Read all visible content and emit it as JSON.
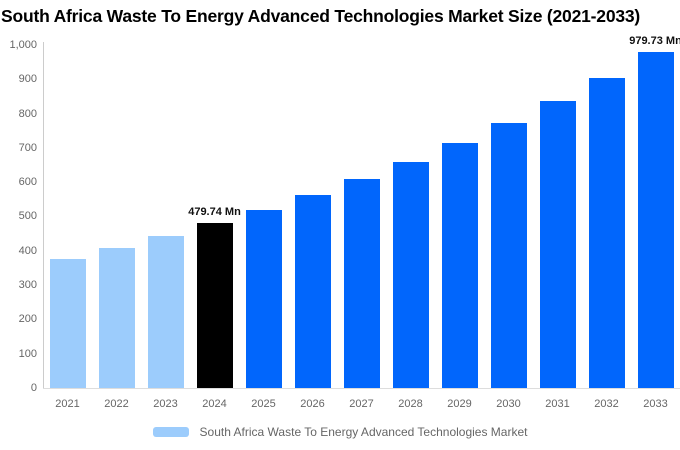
{
  "title": "South Africa Waste To Energy Advanced Technologies Market Size (2021-2033)",
  "chart_data": {
    "type": "bar",
    "title": "South Africa Waste To Energy Advanced Technologies Market Size (2021-2033)",
    "categories": [
      "2021",
      "2022",
      "2023",
      "2024",
      "2025",
      "2026",
      "2027",
      "2028",
      "2029",
      "2030",
      "2031",
      "2032",
      "2033"
    ],
    "values": [
      375,
      408,
      442,
      479.74,
      519,
      562,
      609,
      659,
      713,
      772,
      836,
      905,
      979.73
    ],
    "unit": "Mn",
    "series_name": "South Africa Waste To Energy Advanced Technologies Market",
    "ylim": [
      0,
      1000
    ],
    "ytick_step": 100,
    "ytick_labels": [
      "1,000",
      "900",
      "800",
      "700",
      "600",
      "500",
      "400",
      "300",
      "200",
      "100",
      "0"
    ],
    "grid": false,
    "legend_position": "bottom-center",
    "bar_roles": [
      "historical",
      "historical",
      "historical",
      "current",
      "forecast",
      "forecast",
      "forecast",
      "forecast",
      "forecast",
      "forecast",
      "forecast",
      "forecast",
      "forecast"
    ],
    "annotations": [
      {
        "category": "2024",
        "label": "479.74 Mn"
      },
      {
        "category": "2033",
        "label": "979.73 Mn"
      }
    ]
  },
  "colors": {
    "historical_bar": "#9cccfc",
    "current_bar": "#000000",
    "forecast_bar": "#0166fc",
    "axis_line": "#cccccc",
    "axis_text": "#666666",
    "title_text": "#000000",
    "data_label_text": "#111111"
  },
  "legend": {
    "label": "South Africa Waste To Energy Advanced Technologies Market",
    "swatch_color": "#9cccfc"
  }
}
